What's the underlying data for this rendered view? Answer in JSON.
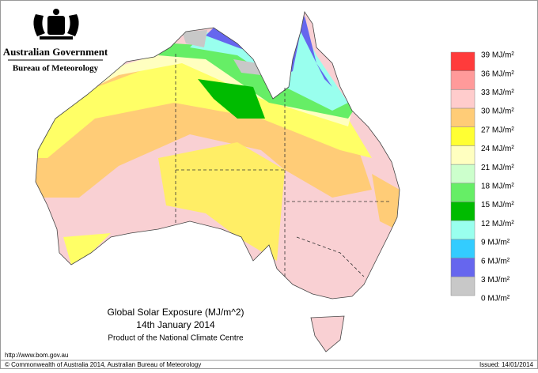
{
  "header": {
    "government": "Australian Government",
    "agency": "Bureau of Meteorology"
  },
  "map": {
    "title": "Global Solar Exposure (MJ/m^2)",
    "date": "14th January 2014",
    "producer": "Product of the National Climate Centre"
  },
  "legend": {
    "labels": [
      "39 MJ/m²",
      "36 MJ/m²",
      "33 MJ/m²",
      "30 MJ/m²",
      "27 MJ/m²",
      "24 MJ/m²",
      "21 MJ/m²",
      "18 MJ/m²",
      "15 MJ/m²",
      "12 MJ/m²",
      "9 MJ/m²",
      "6 MJ/m²",
      "3 MJ/m²",
      "0 MJ/m²"
    ],
    "colors": [
      "#ff3b3b",
      "#ff9a9a",
      "#ffcccc",
      "#ffcc77",
      "#ffff33",
      "#ffffc0",
      "#ccffcc",
      "#66ee66",
      "#00bb00",
      "#99ffee",
      "#33ccff",
      "#6666ee",
      "#c8c8c8"
    ]
  },
  "footer": {
    "url": "http://www.bom.gov.au",
    "copyright": "© Commonwealth of Australia 2014, Australian Bureau of Meteorology",
    "issued": "Issued: 14/01/2014"
  }
}
